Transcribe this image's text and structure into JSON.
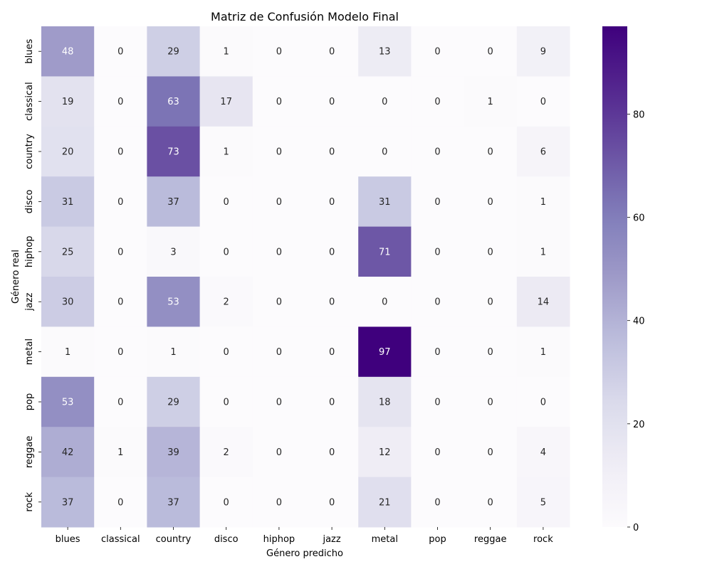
{
  "chart_data": {
    "type": "heatmap",
    "title": "Matriz de Confusión Modelo Final",
    "xlabel": "Género predicho",
    "ylabel": "Género real",
    "x_categories": [
      "blues",
      "classical",
      "country",
      "disco",
      "hiphop",
      "jazz",
      "metal",
      "pop",
      "reggae",
      "rock"
    ],
    "y_categories": [
      "blues",
      "classical",
      "country",
      "disco",
      "hiphop",
      "jazz",
      "metal",
      "pop",
      "reggae",
      "rock"
    ],
    "values": [
      [
        48,
        0,
        29,
        1,
        0,
        0,
        13,
        0,
        0,
        9
      ],
      [
        19,
        0,
        63,
        17,
        0,
        0,
        0,
        0,
        1,
        0
      ],
      [
        20,
        0,
        73,
        1,
        0,
        0,
        0,
        0,
        0,
        6
      ],
      [
        31,
        0,
        37,
        0,
        0,
        0,
        31,
        0,
        0,
        1
      ],
      [
        25,
        0,
        3,
        0,
        0,
        0,
        71,
        0,
        0,
        1
      ],
      [
        30,
        0,
        53,
        2,
        0,
        0,
        0,
        0,
        0,
        14
      ],
      [
        1,
        0,
        1,
        0,
        0,
        0,
        97,
        0,
        0,
        1
      ],
      [
        53,
        0,
        29,
        0,
        0,
        0,
        18,
        0,
        0,
        0
      ],
      [
        42,
        1,
        39,
        2,
        0,
        0,
        12,
        0,
        0,
        4
      ],
      [
        37,
        0,
        37,
        0,
        0,
        0,
        21,
        0,
        0,
        5
      ]
    ],
    "colormap": "Purples",
    "color_range": [
      0,
      97
    ],
    "colorbar_ticks": [
      "0",
      "20",
      "40",
      "60",
      "80"
    ],
    "colorbar_tick_values": [
      0,
      20,
      40,
      60,
      80
    ],
    "grid": false
  }
}
